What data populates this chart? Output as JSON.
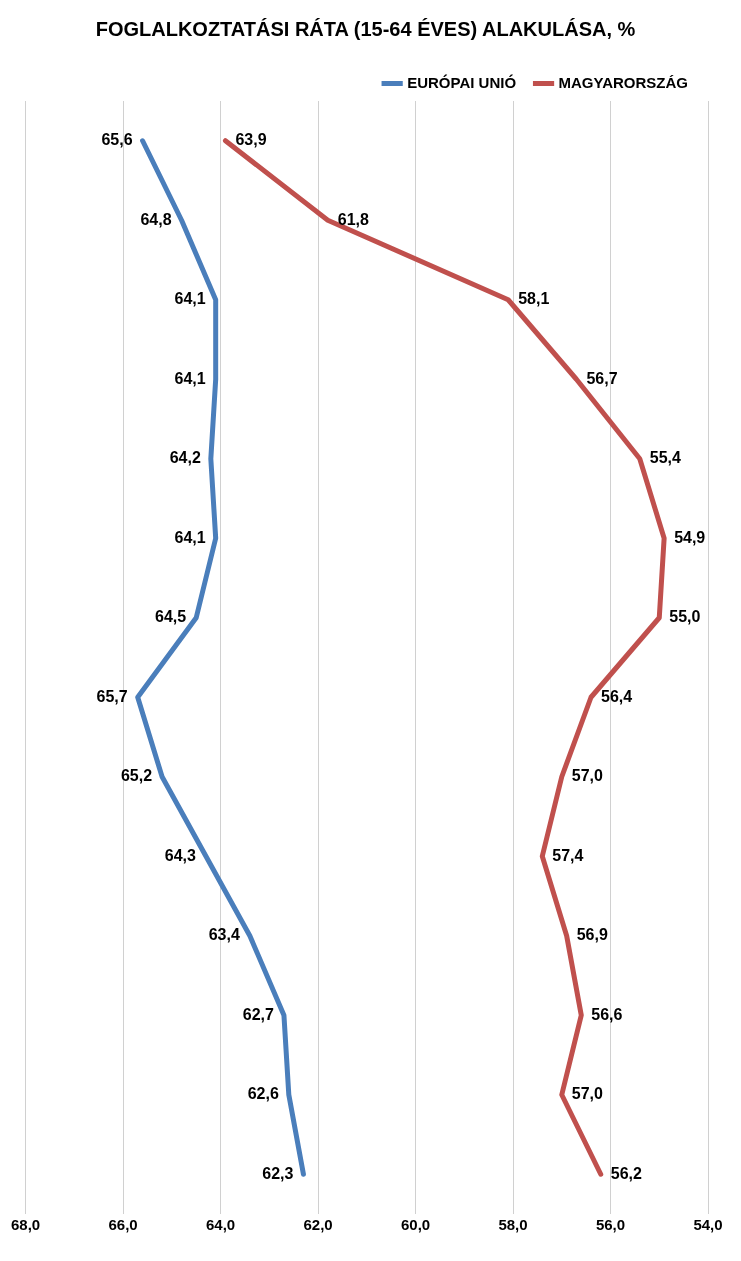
{
  "chart_data": {
    "type": "line",
    "orientation": "horizontal",
    "title": "FOGLALKOZTATÁSI RÁTA (15-64 ÉVES) ALAKULÁSA, %",
    "categories": [
      null,
      null,
      null,
      null,
      null,
      null,
      null,
      null,
      null,
      null,
      null,
      null,
      null,
      null
    ],
    "series": [
      {
        "name": "EURÓPAI UNIÓ",
        "color": "#4a7ebb",
        "values": [
          65.6,
          64.8,
          64.1,
          64.1,
          64.2,
          64.1,
          64.5,
          65.7,
          65.2,
          64.3,
          63.4,
          62.7,
          62.6,
          62.3
        ],
        "value_labels": [
          "65,6",
          "64,8",
          "64,1",
          "64,1",
          "64,2",
          "64,1",
          "64,5",
          "65,7",
          "65,2",
          "64,3",
          "63,4",
          "62,7",
          "62,6",
          "62,3"
        ]
      },
      {
        "name": "MAGYARORSZÁG",
        "color": "#c0504d",
        "values": [
          63.9,
          61.8,
          58.1,
          56.7,
          55.4,
          54.9,
          55.0,
          56.4,
          57.0,
          57.4,
          56.9,
          56.6,
          57.0,
          56.2
        ],
        "value_labels": [
          "63,9",
          "61,8",
          "58,1",
          "56,7",
          "55,4",
          "54,9",
          "55,0",
          "56,4",
          "57,0",
          "57,4",
          "56,9",
          "56,6",
          "57,0",
          "56,2"
        ]
      }
    ],
    "xlim": [
      68,
      54
    ],
    "xticks": [
      {
        "value": 68,
        "label": "68,0"
      },
      {
        "value": 66,
        "label": "66,0"
      },
      {
        "value": 64,
        "label": "64,0"
      },
      {
        "value": 62,
        "label": "62,0"
      },
      {
        "value": 60,
        "label": "60,0"
      },
      {
        "value": 58,
        "label": "58,0"
      },
      {
        "value": 56,
        "label": "56,0"
      },
      {
        "value": 54,
        "label": "54,0"
      }
    ],
    "grid": "x",
    "legend": "top right",
    "marker": "none",
    "line_style": "solid"
  }
}
